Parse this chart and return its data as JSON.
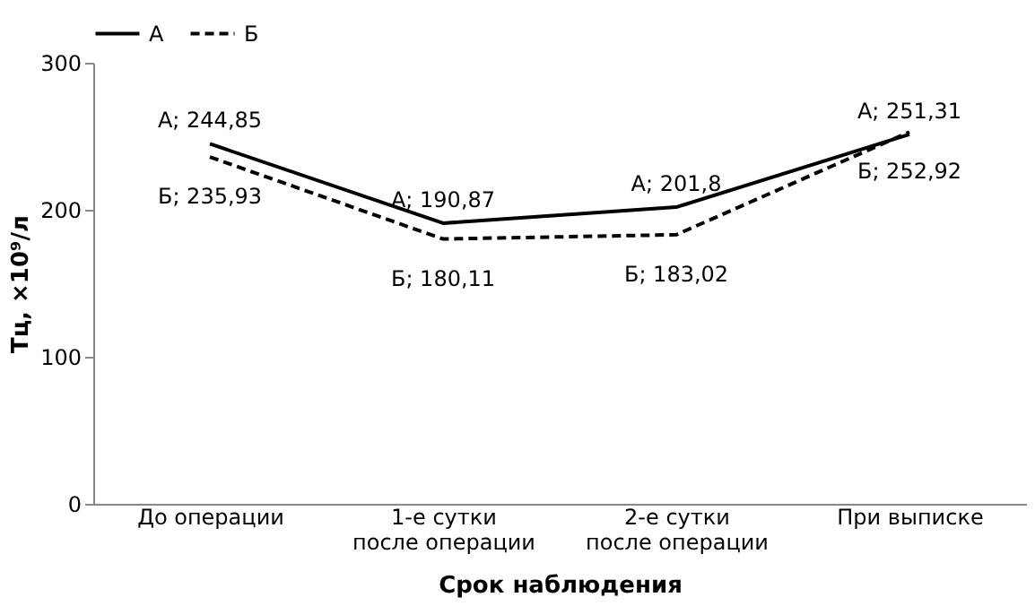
{
  "chart_data": {
    "type": "line",
    "xlabel": "Срок наблюдения",
    "ylabel": "Тц, ×10⁹/л",
    "categories": [
      "До операции",
      "1-е сутки\nпосле операции",
      "2-е сутки\nпосле операции",
      "При выписке"
    ],
    "series": [
      {
        "name": "А",
        "color": "#000000",
        "line_style": "solid",
        "values": [
          244.85,
          190.87,
          201.8,
          251.31
        ],
        "value_labels": [
          "А; 244,85",
          "А; 190,87",
          "А; 201,8",
          "А; 251,31"
        ]
      },
      {
        "name": "Б",
        "color": "#000000",
        "line_style": "dashed",
        "values": [
          235.93,
          180.11,
          183.02,
          252.92
        ],
        "value_labels": [
          "Б; 235,93",
          "Б; 180,11",
          "Б; 183,02",
          "Б; 252,92"
        ]
      }
    ],
    "ylim": [
      0,
      300
    ],
    "yticks": [
      0,
      100,
      200,
      300
    ],
    "grid": false,
    "legend": "top",
    "marker": "none"
  }
}
